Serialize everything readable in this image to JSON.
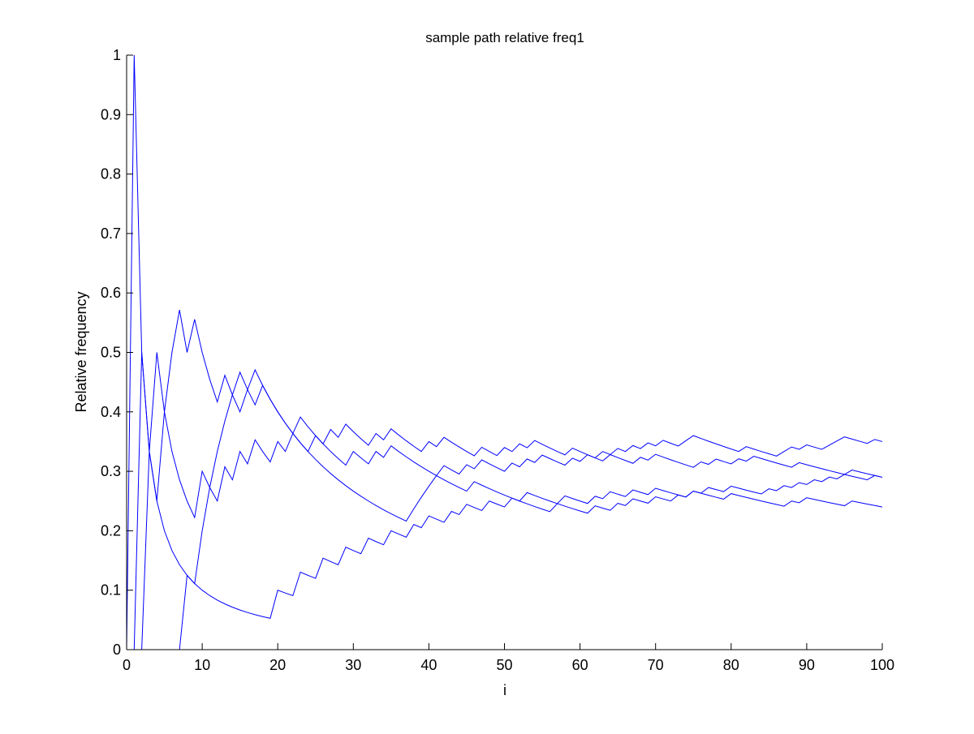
{
  "chart_data": {
    "type": "line",
    "title": "sample path relative freq1",
    "xlabel": "i",
    "ylabel": "Relative frequency",
    "xlim": [
      0,
      100
    ],
    "ylim": [
      0,
      1
    ],
    "xticks": [
      0,
      10,
      20,
      30,
      40,
      50,
      60,
      70,
      80,
      90,
      100
    ],
    "yticks": [
      0,
      0.1,
      0.2,
      0.3,
      0.4,
      0.5,
      0.6,
      0.7,
      0.8,
      0.9,
      1
    ],
    "grid": false,
    "legend": "none",
    "line_color": "#0000ff",
    "axes_color": "#000000",
    "background": "#ffffff",
    "series": [
      {
        "outcomes": [
          1,
          0,
          0,
          0,
          0,
          0,
          0,
          0,
          0,
          0,
          0,
          0,
          0,
          0,
          0,
          0,
          0,
          0,
          0,
          1,
          0,
          0,
          1,
          0,
          0,
          1,
          0,
          0,
          1,
          0,
          0,
          1,
          0,
          0,
          1,
          0,
          0,
          1,
          0,
          1,
          0,
          0,
          1,
          0,
          1,
          0,
          0,
          1,
          0,
          0,
          1,
          0,
          1,
          0,
          0,
          0,
          0,
          1,
          0,
          0,
          0,
          1,
          0,
          1,
          0,
          0,
          1,
          0,
          0,
          1,
          0,
          0,
          0,
          0,
          1,
          0,
          1,
          0,
          0,
          1,
          0,
          0,
          0,
          0,
          1,
          0,
          1,
          0,
          1,
          0,
          1,
          0,
          1,
          0,
          1,
          0,
          0,
          0,
          1,
          0
        ]
      },
      {
        "outcomes": [
          0,
          1,
          0,
          1,
          0,
          0,
          0,
          0,
          0,
          1,
          0,
          0,
          1,
          0,
          1,
          0,
          1,
          0,
          0,
          1,
          0,
          1,
          0,
          0,
          1,
          0,
          0,
          0,
          0,
          1,
          0,
          0,
          1,
          0,
          1,
          0,
          0,
          0,
          0,
          0,
          0,
          0,
          0,
          0,
          0,
          1,
          0,
          0,
          0,
          0,
          0,
          0,
          0,
          0,
          0,
          0,
          1,
          0,
          0,
          0,
          0,
          1,
          0,
          0,
          1,
          0,
          1,
          0,
          0,
          1,
          0,
          0,
          1,
          0,
          1,
          0,
          0,
          0,
          0,
          1,
          0,
          0,
          0,
          0,
          0,
          0,
          0,
          1,
          0,
          1,
          0,
          0,
          0,
          0,
          0,
          1,
          0,
          0,
          0,
          0
        ]
      },
      {
        "outcomes": [
          0,
          0,
          1,
          0,
          1,
          1,
          1,
          0,
          1,
          0,
          0,
          0,
          1,
          0,
          1,
          0,
          1,
          0,
          0,
          0,
          0,
          0,
          1,
          0,
          0,
          0,
          1,
          0,
          1,
          0,
          0,
          0,
          1,
          0,
          1,
          0,
          0,
          0,
          0,
          1,
          0,
          1,
          0,
          0,
          0,
          0,
          1,
          0,
          0,
          1,
          0,
          1,
          0,
          1,
          0,
          0,
          0,
          0,
          1,
          0,
          0,
          0,
          0,
          1,
          0,
          0,
          0,
          1,
          0,
          1,
          0,
          0,
          0,
          0,
          0,
          1,
          0,
          1,
          0,
          0,
          1,
          0,
          1,
          0,
          0,
          0,
          0,
          0,
          1,
          0,
          0,
          0,
          0,
          0,
          0,
          1,
          0,
          0,
          0,
          0
        ]
      },
      {
        "outcomes": [
          0,
          0,
          0,
          0,
          0,
          0,
          0,
          1,
          0,
          1,
          1,
          1,
          1,
          1,
          0,
          1,
          0,
          1,
          0,
          0,
          0,
          0,
          0,
          0,
          0,
          0,
          0,
          0,
          0,
          0,
          0,
          0,
          0,
          0,
          0,
          0,
          0,
          1,
          1,
          1,
          1,
          1,
          0,
          0,
          1,
          0,
          1,
          0,
          0,
          0,
          1,
          0,
          1,
          0,
          1,
          0,
          0,
          0,
          1,
          0,
          1,
          0,
          1,
          0,
          1,
          0,
          1,
          0,
          1,
          0,
          1,
          0,
          0,
          1,
          1,
          0,
          0,
          0,
          0,
          0,
          0,
          1,
          0,
          0,
          0,
          0,
          1,
          1,
          0,
          1,
          0,
          0,
          1,
          1,
          1,
          0,
          0,
          0,
          1,
          0
        ]
      }
    ]
  }
}
